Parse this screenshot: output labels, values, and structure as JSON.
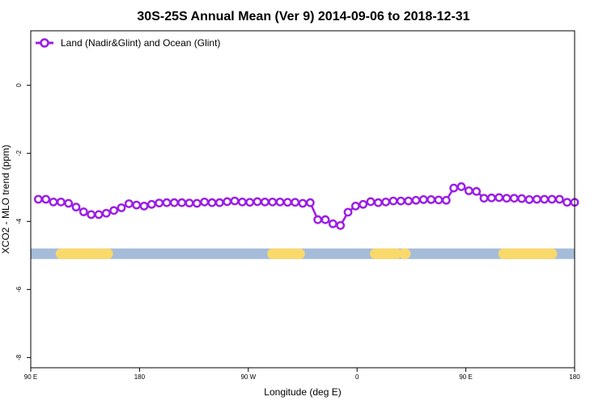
{
  "chart_data": {
    "type": "line",
    "title": "30S-25S Annual Mean (Ver 9)   2014-09-06 to 2018-12-31",
    "xlabel": "Longitude (deg E)",
    "ylabel": "XCO2 - MLO trend (ppm)",
    "xlim": [
      90,
      450
    ],
    "ylim": [
      -8.3,
      1.6
    ],
    "x_ticks": [
      {
        "value": 90,
        "label": "90 E"
      },
      {
        "value": 162,
        "label": "180"
      },
      {
        "value": 234,
        "label": "90 W"
      },
      {
        "value": 306,
        "label": "0"
      },
      {
        "value": 378,
        "label": "90 E"
      },
      {
        "value": 450,
        "label": "180"
      }
    ],
    "y_ticks": [
      0,
      -2,
      -4,
      -6,
      -8
    ],
    "grid": false,
    "legend_position": "top-left",
    "series": [
      {
        "name": "Land (Nadir&Glint) and Ocean (Glint)",
        "color": "#9b1de6",
        "x": [
          95,
          100,
          105,
          110,
          115,
          120,
          125,
          130,
          135,
          140,
          145,
          150,
          155,
          160,
          165,
          170,
          175,
          180,
          185,
          190,
          195,
          200,
          205,
          210,
          215,
          220,
          225,
          230,
          235,
          240,
          245,
          250,
          255,
          260,
          265,
          270,
          275,
          280,
          285,
          290,
          295,
          300,
          305,
          310,
          315,
          320,
          325,
          330,
          335,
          340,
          345,
          350,
          355,
          360,
          365,
          370,
          375,
          380,
          385,
          390,
          395,
          400,
          405,
          410,
          415,
          420,
          425,
          430,
          435,
          440,
          445,
          450
        ],
        "y": [
          -3.35,
          -3.35,
          -3.43,
          -3.43,
          -3.47,
          -3.58,
          -3.72,
          -3.8,
          -3.8,
          -3.76,
          -3.68,
          -3.6,
          -3.48,
          -3.52,
          -3.55,
          -3.5,
          -3.46,
          -3.45,
          -3.45,
          -3.45,
          -3.46,
          -3.47,
          -3.43,
          -3.45,
          -3.45,
          -3.42,
          -3.4,
          -3.43,
          -3.44,
          -3.42,
          -3.43,
          -3.43,
          -3.43,
          -3.44,
          -3.44,
          -3.47,
          -3.45,
          -3.95,
          -3.95,
          -4.07,
          -4.12,
          -3.73,
          -3.55,
          -3.5,
          -3.42,
          -3.45,
          -3.43,
          -3.4,
          -3.4,
          -3.4,
          -3.38,
          -3.36,
          -3.36,
          -3.37,
          -3.38,
          -3.02,
          -2.98,
          -3.1,
          -3.12,
          -3.32,
          -3.31,
          -3.3,
          -3.32,
          -3.32,
          -3.33,
          -3.36,
          -3.35,
          -3.35,
          -3.35,
          -3.35,
          -3.44,
          -3.44
        ]
      }
    ],
    "surface_bar": {
      "y": -4.95,
      "ocean_color": "#a5bcd9",
      "land_color": "#fad96b",
      "land_segments": [
        [
          110,
          141
        ],
        [
          250,
          268
        ],
        [
          318,
          332
        ],
        [
          337,
          338
        ],
        [
          403,
          435
        ]
      ]
    }
  }
}
